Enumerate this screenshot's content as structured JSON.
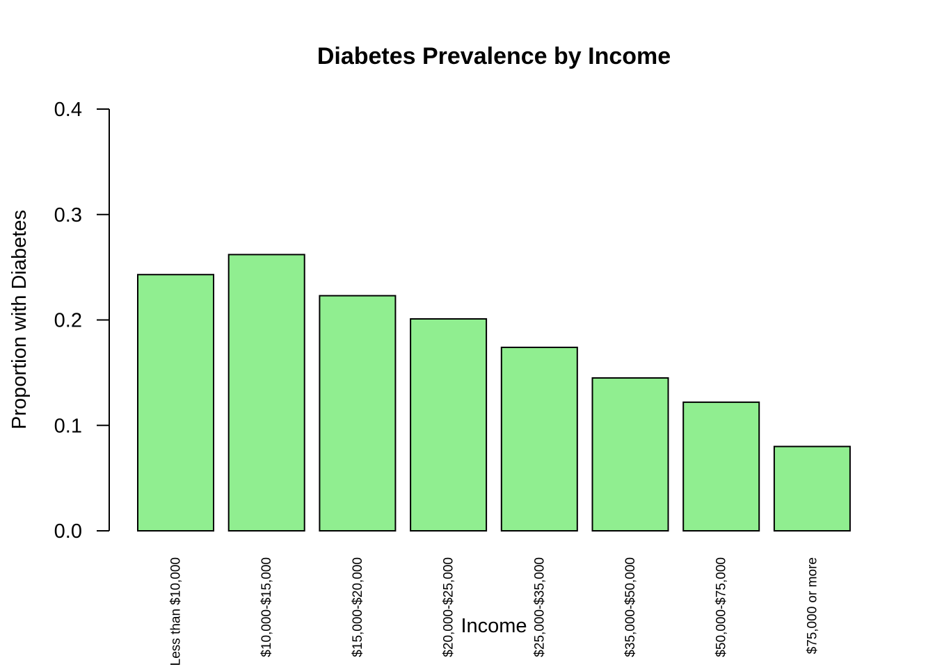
{
  "chart_data": {
    "type": "bar",
    "title": "Diabetes Prevalence by Income",
    "xlabel": "Income",
    "ylabel": "Proportion with Diabetes",
    "categories": [
      "Less than $10,000",
      "$10,000-$15,000",
      "$15,000-$20,000",
      "$20,000-$25,000",
      "$25,000-$35,000",
      "$35,000-$50,000",
      "$50,000-$75,000",
      "$75,000 or more"
    ],
    "values": [
      0.243,
      0.262,
      0.223,
      0.201,
      0.174,
      0.145,
      0.122,
      0.08
    ],
    "ylim": [
      0,
      0.4
    ],
    "yticks": [
      "0.0",
      "0.1",
      "0.2",
      "0.3",
      "0.4"
    ],
    "bar_color": "#90EE90",
    "grid": false,
    "legend": "none"
  }
}
